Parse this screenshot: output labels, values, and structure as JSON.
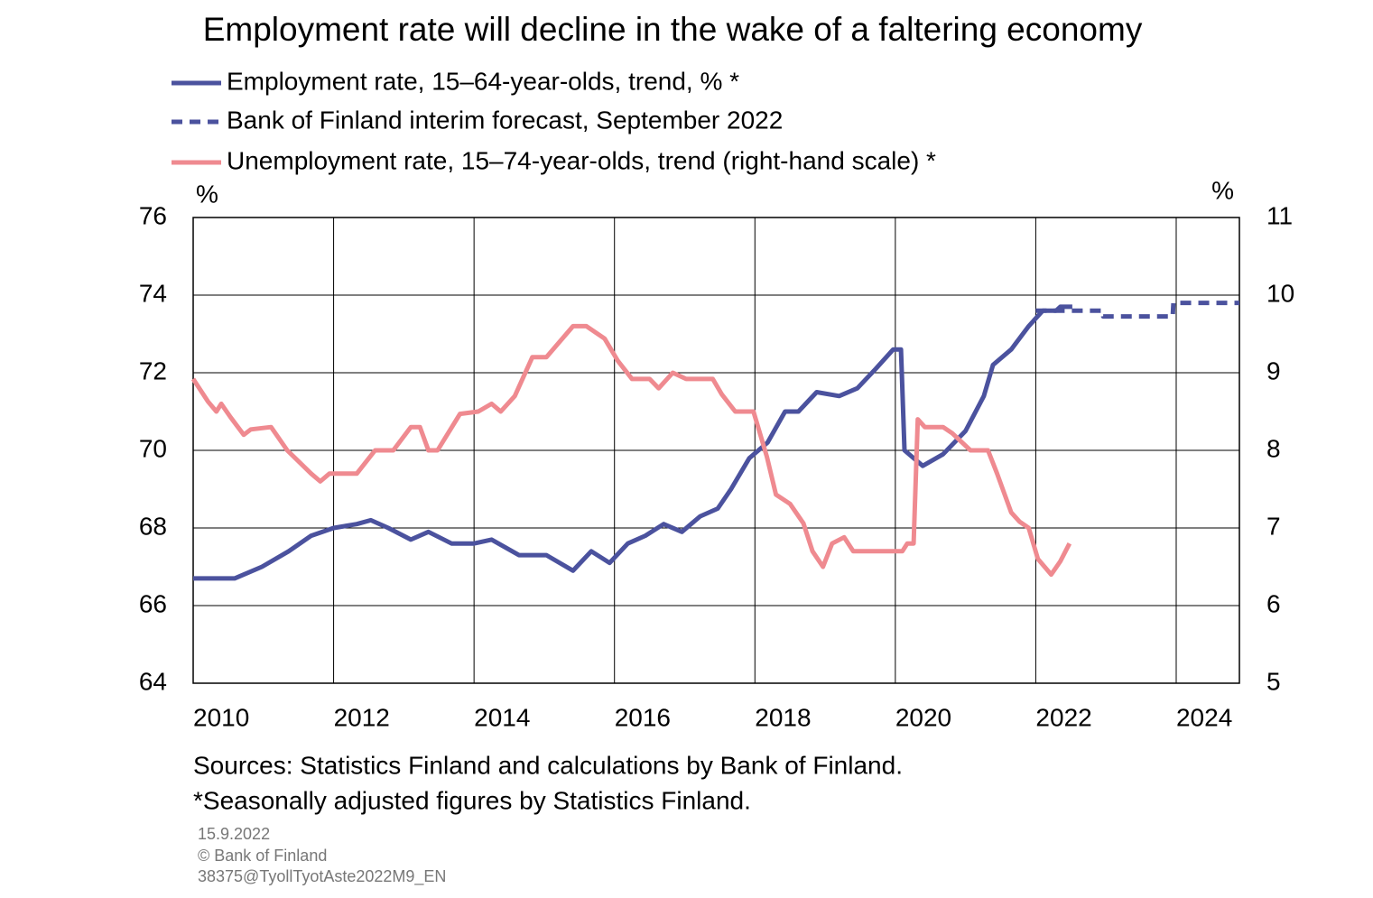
{
  "chart_data": {
    "type": "line",
    "title": "Employment rate will decline in the wake of a faltering economy",
    "y_unit": "%",
    "y2_unit": "%",
    "xlim": [
      2010,
      2024.9
    ],
    "xticks": [
      2010,
      2012,
      2014,
      2016,
      2018,
      2020,
      2022,
      2024
    ],
    "ylim": [
      64,
      76
    ],
    "yticks": [
      64,
      66,
      68,
      70,
      72,
      74,
      76
    ],
    "y2lim": [
      5,
      11
    ],
    "y2ticks": [
      5,
      6,
      7,
      8,
      9,
      10,
      11
    ],
    "grid": true,
    "series": [
      {
        "name": "Employment rate, 15–64-year-olds, trend, % *",
        "color": "#4b529e",
        "style": "solid",
        "x": [
          2010.0,
          2010.59,
          2010.98,
          2011.36,
          2011.68,
          2012.0,
          2012.33,
          2012.53,
          2012.78,
          2013.1,
          2013.35,
          2013.68,
          2014.0,
          2014.25,
          2014.64,
          2015.03,
          2015.41,
          2015.67,
          2015.93,
          2016.19,
          2016.44,
          2016.7,
          2016.96,
          2017.22,
          2017.47,
          2017.66,
          2017.92,
          2018.18,
          2018.43,
          2018.62,
          2018.88,
          2019.2,
          2019.46,
          2019.72,
          2019.97,
          2020.08,
          2020.13,
          2020.39,
          2020.68,
          2021.0,
          2021.26,
          2021.39,
          2021.65,
          2021.9,
          2022.1,
          2022.29,
          2022.35,
          2022.52
        ],
        "values": [
          66.7,
          66.7,
          67.0,
          67.4,
          67.8,
          68.0,
          68.1,
          68.2,
          68.0,
          67.7,
          67.9,
          67.6,
          67.6,
          67.7,
          67.3,
          67.3,
          66.9,
          67.4,
          67.1,
          67.6,
          67.8,
          68.1,
          67.9,
          68.3,
          68.5,
          69.0,
          69.8,
          70.2,
          71.0,
          71.0,
          71.5,
          71.4,
          71.6,
          72.1,
          72.6,
          72.6,
          70.0,
          69.6,
          69.9,
          70.5,
          71.4,
          72.2,
          72.6,
          73.2,
          73.6,
          73.6,
          73.7,
          73.7
        ]
      },
      {
        "name": "Bank of Finland interim forecast, September 2022",
        "color": "#4b529e",
        "style": "dashed",
        "x": [
          2022.0,
          2022.95,
          2022.96,
          2023.95,
          2023.96,
          2024.9
        ],
        "values": [
          73.6,
          73.6,
          73.45,
          73.45,
          73.8,
          73.8
        ]
      },
      {
        "name": "Unemployment rate, 15–74-year-olds, trend (right-hand scale) *",
        "color": "#ef8a90",
        "style": "solid",
        "axis": "y2",
        "x": [
          2010.0,
          2010.21,
          2010.33,
          2010.4,
          2010.53,
          2010.72,
          2010.82,
          2011.11,
          2011.34,
          2011.68,
          2011.81,
          2011.94,
          2012.33,
          2012.59,
          2012.85,
          2013.1,
          2013.23,
          2013.35,
          2013.48,
          2013.8,
          2014.06,
          2014.25,
          2014.38,
          2014.58,
          2014.83,
          2015.03,
          2015.22,
          2015.41,
          2015.6,
          2015.86,
          2016.05,
          2016.25,
          2016.5,
          2016.63,
          2016.83,
          2017.02,
          2017.4,
          2017.53,
          2017.72,
          2017.98,
          2018.17,
          2018.3,
          2018.5,
          2018.69,
          2018.82,
          2018.97,
          2019.1,
          2019.27,
          2019.4,
          2019.78,
          2020.1,
          2020.17,
          2020.26,
          2020.32,
          2020.42,
          2020.68,
          2020.81,
          2021.07,
          2021.32,
          2021.45,
          2021.65,
          2021.77,
          2021.9,
          2022.03,
          2022.22,
          2022.35,
          2022.48
        ],
        "values": [
          8.92,
          8.63,
          8.5,
          8.6,
          8.43,
          8.2,
          8.27,
          8.3,
          8.0,
          7.7,
          7.6,
          7.7,
          7.7,
          8.0,
          8.0,
          8.3,
          8.3,
          8.0,
          8.0,
          8.47,
          8.5,
          8.6,
          8.5,
          8.7,
          9.2,
          9.2,
          9.4,
          9.6,
          9.6,
          9.44,
          9.15,
          8.92,
          8.92,
          8.8,
          9.0,
          8.92,
          8.92,
          8.72,
          8.5,
          8.5,
          7.92,
          7.43,
          7.31,
          7.06,
          6.7,
          6.5,
          6.8,
          6.88,
          6.7,
          6.7,
          6.7,
          6.8,
          6.8,
          8.4,
          8.3,
          8.3,
          8.22,
          8.0,
          8.0,
          7.7,
          7.2,
          7.08,
          7.0,
          6.6,
          6.4,
          6.57,
          6.8
        ]
      }
    ],
    "notes": [
      "Sources: Statistics Finland and calculations by Bank of Finland.",
      "*Seasonally adjusted figures by Statistics Finland."
    ],
    "footer": [
      "15.9.2022",
      "© Bank of Finland",
      "38375@TyollTyotAste2022M9_EN"
    ]
  }
}
